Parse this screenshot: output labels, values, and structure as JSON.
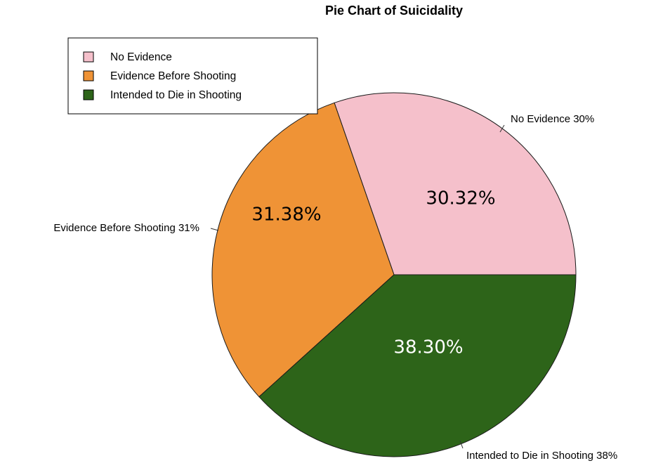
{
  "chart_data": {
    "type": "pie",
    "title": "Pie Chart of Suicidality",
    "slices": [
      {
        "name": "No Evidence",
        "value": 30.32,
        "percent_label": "30.32%",
        "callout": "No Evidence 30%",
        "color": "#f5c0cb",
        "label_color": "#000000"
      },
      {
        "name": "Evidence Before Shooting",
        "value": 31.38,
        "percent_label": "31.38%",
        "callout": "Evidence Before Shooting 31%",
        "color": "#ef9336",
        "label_color": "#000000"
      },
      {
        "name": "Intended to Die in Shooting",
        "value": 38.3,
        "percent_label": "38.30%",
        "callout": "Intended to Die in Shooting 38%",
        "color": "#2d6419",
        "label_color": "#ffffff"
      }
    ],
    "start_angle": "3 o'clock",
    "direction": "counterclockwise",
    "legend": {
      "position": "top-left",
      "entries": [
        "No Evidence",
        "Evidence Before Shooting",
        "Intended to Die in Shooting"
      ]
    }
  }
}
